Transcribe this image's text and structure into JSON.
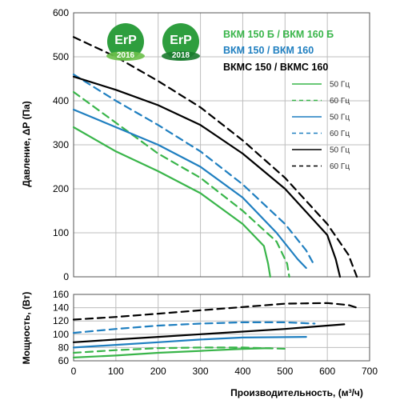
{
  "chart_data": [
    {
      "type": "line",
      "ylabel": "Давление, ΔP (Па)",
      "xlim": [
        0,
        700
      ],
      "ylim": [
        0,
        600
      ],
      "x_ticks": [
        0,
        100,
        200,
        300,
        400,
        500,
        600,
        700
      ],
      "y_ticks": [
        0,
        100,
        200,
        300,
        400,
        500,
        600
      ],
      "grid": true,
      "legend_position": "top-right",
      "legend_groups": [
        {
          "title": "ВКМ 150 Б / ВКМ 160 Б",
          "color": "#39b54a"
        },
        {
          "title": "ВКМ 150 / ВКМ 160",
          "color": "#1f7fc0"
        },
        {
          "title": "ВКМС 150 / ВКМС 160",
          "color": "#000000"
        }
      ],
      "series": [
        {
          "name": "50 Гц",
          "group": 0,
          "color": "#39b54a",
          "style": "solid",
          "x": [
            0,
            100,
            200,
            300,
            400,
            450,
            460,
            465
          ],
          "y": [
            340,
            285,
            240,
            190,
            120,
            70,
            30,
            0
          ]
        },
        {
          "name": "60 Гц",
          "group": 0,
          "color": "#39b54a",
          "style": "dashed",
          "x": [
            0,
            100,
            200,
            300,
            400,
            480,
            505,
            510
          ],
          "y": [
            420,
            350,
            280,
            225,
            150,
            80,
            30,
            0
          ]
        },
        {
          "name": "50 Гц",
          "group": 1,
          "color": "#1f7fc0",
          "style": "solid",
          "x": [
            0,
            100,
            200,
            300,
            400,
            480,
            530,
            550
          ],
          "y": [
            380,
            340,
            300,
            250,
            180,
            100,
            40,
            20
          ]
        },
        {
          "name": "60 Гц",
          "group": 1,
          "color": "#1f7fc0",
          "style": "dashed",
          "x": [
            0,
            100,
            200,
            300,
            400,
            500,
            550,
            570
          ],
          "y": [
            460,
            400,
            345,
            285,
            210,
            120,
            60,
            25
          ]
        },
        {
          "name": "50 Гц",
          "group": 2,
          "color": "#000000",
          "style": "solid",
          "x": [
            0,
            100,
            200,
            300,
            400,
            500,
            600,
            620,
            630
          ],
          "y": [
            455,
            425,
            390,
            345,
            280,
            200,
            95,
            40,
            0
          ]
        },
        {
          "name": "60 Гц",
          "group": 2,
          "color": "#000000",
          "style": "dashed",
          "x": [
            0,
            100,
            200,
            300,
            400,
            500,
            600,
            650,
            670
          ],
          "y": [
            545,
            500,
            445,
            385,
            310,
            225,
            120,
            50,
            0
          ]
        }
      ]
    },
    {
      "type": "line",
      "xlabel": "Производительность, (м³/ч)",
      "ylabel": "Мощность, (Вт)",
      "xlim": [
        0,
        700
      ],
      "ylim": [
        60,
        160
      ],
      "x_ticks": [
        0,
        100,
        200,
        300,
        400,
        500,
        600,
        700
      ],
      "y_ticks": [
        60,
        80,
        100,
        120,
        140,
        160
      ],
      "grid": true,
      "series": [
        {
          "group": 0,
          "color": "#39b54a",
          "style": "solid",
          "x": [
            0,
            100,
            200,
            300,
            400,
            465
          ],
          "y": [
            65,
            68,
            72,
            75,
            78,
            79
          ]
        },
        {
          "group": 0,
          "color": "#39b54a",
          "style": "dashed",
          "x": [
            0,
            100,
            200,
            300,
            400,
            510
          ],
          "y": [
            72,
            76,
            79,
            80,
            80,
            78
          ]
        },
        {
          "group": 1,
          "color": "#1f7fc0",
          "style": "solid",
          "x": [
            0,
            100,
            200,
            300,
            400,
            550
          ],
          "y": [
            80,
            84,
            88,
            92,
            95,
            96
          ]
        },
        {
          "group": 1,
          "color": "#1f7fc0",
          "style": "dashed",
          "x": [
            0,
            100,
            200,
            300,
            400,
            500,
            570
          ],
          "y": [
            102,
            108,
            113,
            116,
            118,
            118,
            116
          ]
        },
        {
          "group": 2,
          "color": "#000000",
          "style": "solid",
          "x": [
            0,
            100,
            200,
            300,
            400,
            500,
            600,
            640
          ],
          "y": [
            88,
            92,
            96,
            100,
            104,
            108,
            113,
            115
          ]
        },
        {
          "group": 2,
          "color": "#000000",
          "style": "dashed",
          "x": [
            0,
            100,
            200,
            300,
            400,
            500,
            600,
            650,
            670
          ],
          "y": [
            122,
            126,
            131,
            136,
            141,
            146,
            147,
            144,
            140
          ]
        }
      ]
    }
  ],
  "badges": [
    {
      "text": "ErP",
      "year": "2016"
    },
    {
      "text": "ErP",
      "year": "2018"
    }
  ]
}
